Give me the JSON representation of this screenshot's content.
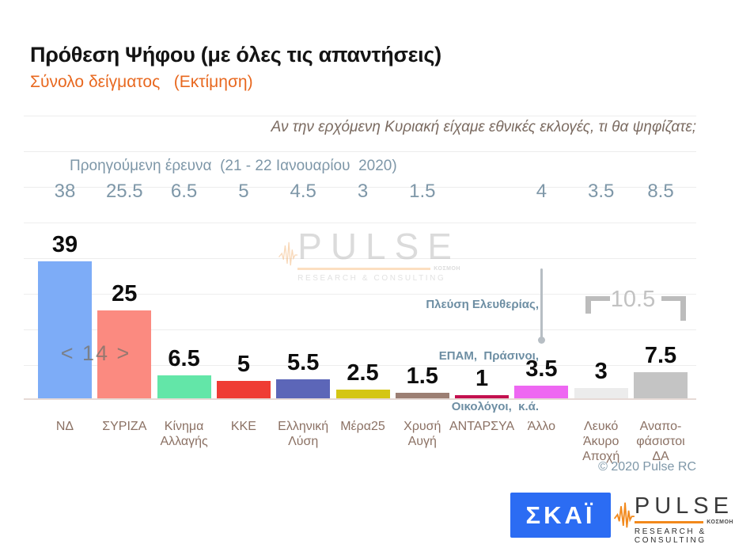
{
  "header": {
    "title": "Πρόθεση Ψήφου (με όλες τις απαντήσεις)",
    "subtitle": "Σύνολο δείγματος   (Εκτίμηση)"
  },
  "question": "Αν την ερχόμενη Κυριακή είχαμε εθνικές εκλογές, τι θα ψηφίζατε;",
  "previous_survey_label": "Προηγούμενη έρευνα  (21 - 22 Ιανουαρίου  2020)",
  "chart_data": {
    "type": "bar",
    "categories": [
      "ΝΔ",
      "ΣΥΡΙΖΑ",
      "Κίνημα Αλλαγής",
      "ΚΚΕ",
      "Ελληνική Λύση",
      "Μέρα25",
      "Χρυσή Αυγή",
      "ΑΝΤΑΡΣΥΑ",
      "Άλλο",
      "Λευκό Άκυρο Αποχή",
      "Αναπο-φάσιστοι ΔΑ"
    ],
    "category_label_lines": [
      [
        "ΝΔ"
      ],
      [
        "ΣΥΡΙΖΑ"
      ],
      [
        "Κίνημα",
        "Αλλαγής"
      ],
      [
        "ΚΚΕ"
      ],
      [
        "Ελληνική",
        "Λύση"
      ],
      [
        "Μέρα25"
      ],
      [
        "Χρυσή",
        "Αυγή"
      ],
      [
        "ΑΝΤΑΡΣΥΑ"
      ],
      [
        "Άλλο"
      ],
      [
        "Λευκό",
        "Άκυρο",
        "Αποχή"
      ],
      [
        "Αναπο-",
        "φάσιστοι",
        "ΔΑ"
      ]
    ],
    "series": [
      {
        "name": "Εκτίμηση",
        "values": [
          39,
          25,
          6.5,
          5,
          5.5,
          2.5,
          1.5,
          1,
          3.5,
          3,
          7.5
        ],
        "display": [
          "39",
          "25",
          "6.5",
          "5",
          "5.5",
          "2.5",
          "1.5",
          "1",
          "3.5",
          "3",
          "7.5"
        ]
      },
      {
        "name": "Προηγούμενη έρευνα (21 - 22 Ιανουαρίου 2020)",
        "values": [
          38,
          25.5,
          6.5,
          5,
          4.5,
          3,
          1.5,
          null,
          4,
          3.5,
          8.5
        ],
        "display": [
          "38",
          "25.5",
          "6.5",
          "5",
          "4.5",
          "3",
          "1.5",
          "",
          "4",
          "3.5",
          "8.5"
        ]
      }
    ],
    "bar_colors": [
      "#7dacf7",
      "#fb8a80",
      "#63e6a8",
      "#ef3c34",
      "#5c66b8",
      "#d4c614",
      "#9c7f73",
      "#c3104f",
      "#ee67f2",
      "#ececec",
      "#c4c4c4"
    ],
    "ylim": [
      0,
      45
    ],
    "grid": true,
    "legend_position": "none",
    "title": "Πρόθεση Ψήφου (με όλες τις απαντήσεις)",
    "xlabel": "",
    "ylabel": "",
    "annotations": {
      "lead_label": "< 14 >",
      "other_note_lines": [
        "Πλεύση Ελευθερίας,",
        "ΕΠΑΜ,  Πράσινοι,",
        "Οικολόγοι,  κ.ά."
      ],
      "combined_last_two_label": "10.5"
    }
  },
  "copyright": "© 2020 Pulse RC",
  "footer": {
    "skai_logo_text": "ΣΚΑΪ",
    "pulse_logo": {
      "word": "PULSE",
      "fineprint": "ΚΟΣΜΟΗ",
      "subline": "RESEARCH & CONSULTING"
    }
  },
  "colors": {
    "subtitle_orange": "#e8681f",
    "slate_blue_gray": "#7e97a8",
    "category_brown": "#8b7164",
    "annotation_slate": "#6d8ea3",
    "bracket_gray": "#bcbcbc",
    "skai_blue": "#2b6cf3",
    "pulse_orange": "#f2891c"
  }
}
